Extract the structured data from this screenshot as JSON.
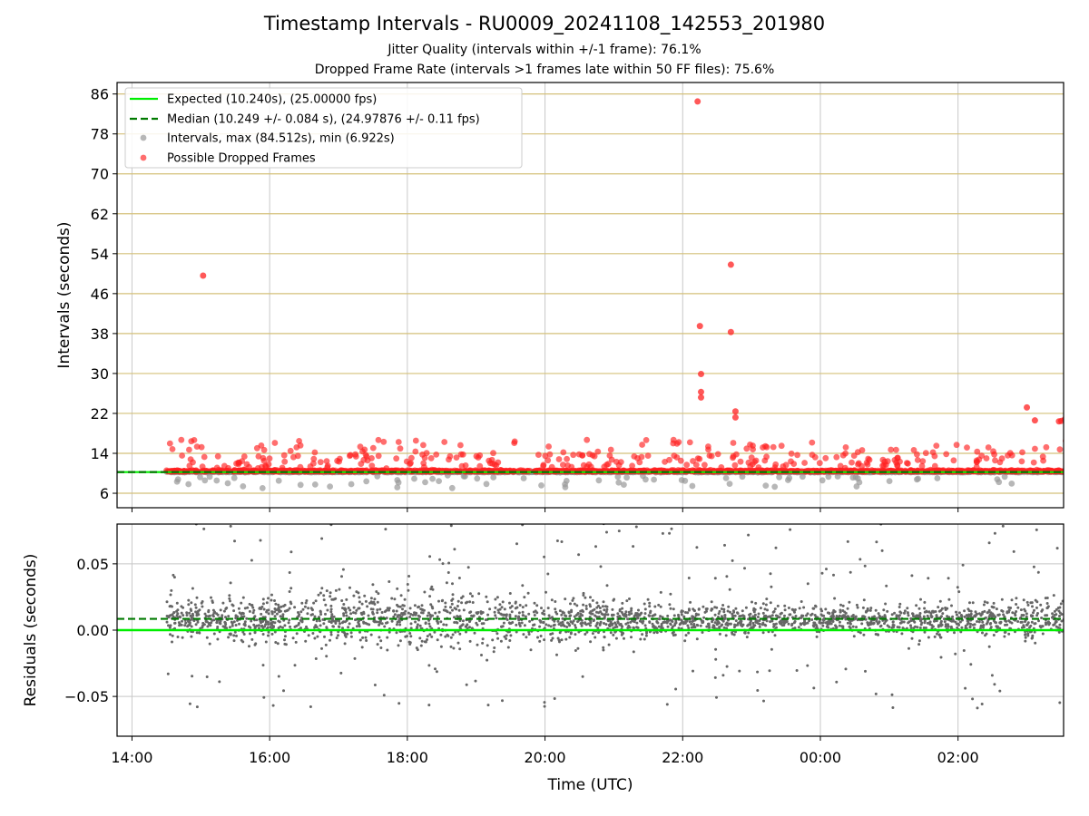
{
  "title": "Timestamp Intervals - RU0009_20241108_142553_201980",
  "subtitle_1": "Jitter Quality (intervals within +/-1 frame): 76.1%",
  "subtitle_2": "Dropped Frame Rate (intervals >1 frames late within 50 FF files): 75.6%",
  "colors": {
    "expected": "#00ee00",
    "median": "#007a00",
    "intervals": "#999999",
    "dropped": "#ff2020",
    "residuals": "#666666",
    "hgrid_top": "#d4c07a",
    "grid": "#c8c8c8"
  },
  "chart_data": [
    {
      "type": "scatter",
      "panel": "intervals",
      "ylabel": "Intervals (seconds)",
      "xlabel": "",
      "x_ticks": [
        "14:00",
        "16:00",
        "18:00",
        "20:00",
        "22:00",
        "00:00",
        "02:00"
      ],
      "y_ticks": [
        6,
        14,
        22,
        30,
        38,
        46,
        54,
        62,
        70,
        78,
        86
      ],
      "xlim": [
        "2024-11-08 13:47",
        "2024-11-09 03:32"
      ],
      "ylim": [
        3.1,
        88.3
      ],
      "grid": true,
      "legend_position": "upper-left",
      "legend": [
        "Expected (10.240s), (25.00000 fps)",
        "Median (10.249 +/- 0.084 s), (24.97876 +/- 0.11 fps)",
        "Intervals, max (84.512s), min (6.922s)",
        "Possible Dropped Frames"
      ],
      "series": [
        {
          "name": "Expected (10.240s), (25.00000 fps)",
          "kind": "line",
          "y": 10.24
        },
        {
          "name": "Median (10.249 +/- 0.084 s), (24.97876 +/- 0.11 fps)",
          "kind": "dashed-line",
          "y": 10.249
        },
        {
          "name": "Intervals, max (84.512s), min (6.922s)",
          "kind": "points",
          "x_range": [
            "14:30",
            "03:32"
          ],
          "typical_y": 10.24,
          "min": 6.922,
          "max": 84.512
        },
        {
          "name": "Possible Dropped Frames",
          "kind": "points",
          "typical_y": 10.5,
          "notable_points": [
            {
              "x": "15:02",
              "y": 49.6
            },
            {
              "x": "22:13",
              "y": 84.5
            },
            {
              "x": "22:15",
              "y": 39.5
            },
            {
              "x": "22:16",
              "y": 29.9
            },
            {
              "x": "22:16",
              "y": 26.3
            },
            {
              "x": "22:16",
              "y": 25.2
            },
            {
              "x": "22:42",
              "y": 51.8
            },
            {
              "x": "22:42",
              "y": 38.3
            },
            {
              "x": "22:46",
              "y": 22.4
            },
            {
              "x": "22:46",
              "y": 21.2
            },
            {
              "x": "03:00",
              "y": 23.2
            },
            {
              "x": "03:07",
              "y": 20.6
            },
            {
              "x": "03:28",
              "y": 20.4
            },
            {
              "x": "03:30",
              "y": 20.5
            },
            {
              "x": "03:33",
              "y": 20.8
            }
          ]
        }
      ]
    },
    {
      "type": "scatter",
      "panel": "residuals",
      "ylabel": "Residuals (seconds)",
      "xlabel": "Time (UTC)",
      "x_ticks": [
        "14:00",
        "16:00",
        "18:00",
        "20:00",
        "22:00",
        "00:00",
        "02:00"
      ],
      "y_ticks": [
        "−0.05",
        "0.00",
        "0.05"
      ],
      "y_tick_values": [
        -0.05,
        0,
        0.05
      ],
      "xlim": [
        "2024-11-08 13:47",
        "2024-11-09 03:32"
      ],
      "ylim": [
        -0.08,
        0.08
      ],
      "grid": true,
      "series": [
        {
          "name": "",
          "kind": "line",
          "y": 0.0
        },
        {
          "name": "",
          "kind": "dashed-line",
          "y": 0.0085
        },
        {
          "name": "",
          "kind": "points",
          "x_range": [
            "14:30",
            "03:32"
          ],
          "typical_range": [
            -0.03,
            0.05
          ]
        }
      ]
    }
  ]
}
